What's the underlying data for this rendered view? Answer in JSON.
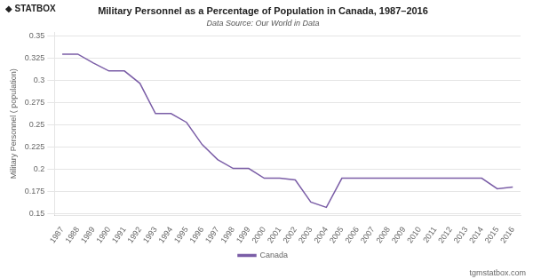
{
  "chart_data": {
    "type": "line",
    "title": "Military Personnel as a Percentage of Population in Canada, 1987–2016",
    "subtitle": "Data Source: Our World in Data",
    "y_label": "Military Personnel ( population)",
    "annotations": [
      "◆ STATBOX",
      "tgmstatbox.com"
    ],
    "x": [
      1987,
      1988,
      1989,
      1990,
      1991,
      1992,
      1993,
      1994,
      1995,
      1996,
      1997,
      1998,
      1999,
      2000,
      2001,
      2002,
      2003,
      2004,
      2005,
      2006,
      2007,
      2008,
      2009,
      2010,
      2011,
      2012,
      2013,
      2014,
      2015,
      2016
    ],
    "series": [
      {
        "name": "Canada",
        "color": "#7b5ea7",
        "values": [
          0.33,
          0.33,
          0.32,
          0.311,
          0.311,
          0.297,
          0.263,
          0.263,
          0.253,
          0.228,
          0.211,
          0.201,
          0.201,
          0.19,
          0.19,
          0.188,
          0.163,
          0.157,
          0.19,
          0.19,
          0.19,
          0.19,
          0.19,
          0.19,
          0.19,
          0.19,
          0.19,
          0.19,
          0.178,
          0.18
        ]
      }
    ],
    "xlim": [
      1986.5,
      2016.5
    ],
    "xticks": [
      1987,
      1988,
      1989,
      1990,
      1991,
      1992,
      1993,
      1994,
      1995,
      1996,
      1997,
      1998,
      1999,
      2000,
      2001,
      2002,
      2003,
      2004,
      2005,
      2006,
      2007,
      2008,
      2009,
      2010,
      2011,
      2012,
      2013,
      2014,
      2015,
      2016
    ],
    "ylim": [
      0.148,
      0.355
    ],
    "yticks": [
      0.15,
      0.175,
      0.2,
      0.225,
      0.25,
      0.275,
      0.3,
      0.325,
      0.35
    ],
    "grid": "y",
    "legend": "bottom"
  }
}
